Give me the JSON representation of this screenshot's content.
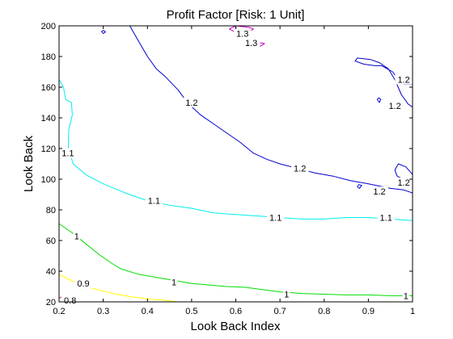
{
  "chart_data": {
    "type": "contour",
    "title": "Profit Factor [Risk: 1 Unit]",
    "xlabel": "Look Back Index",
    "ylabel": "Look Back",
    "xlim": [
      0.2,
      1.0
    ],
    "ylim": [
      20,
      200
    ],
    "grid": false,
    "xticks": [
      {
        "value": 0.2,
        "label": "0.2"
      },
      {
        "value": 0.3,
        "label": "0.3"
      },
      {
        "value": 0.4,
        "label": "0.4"
      },
      {
        "value": 0.5,
        "label": "0.5"
      },
      {
        "value": 0.6,
        "label": "0.6"
      },
      {
        "value": 0.7,
        "label": "0.7"
      },
      {
        "value": 0.8,
        "label": "0.8"
      },
      {
        "value": 0.9,
        "label": "0.9"
      },
      {
        "value": 1.0,
        "label": "1"
      }
    ],
    "yticks": [
      {
        "value": 20,
        "label": "20"
      },
      {
        "value": 40,
        "label": "40"
      },
      {
        "value": 60,
        "label": "60"
      },
      {
        "value": 80,
        "label": "80"
      },
      {
        "value": 100,
        "label": "100"
      },
      {
        "value": 120,
        "label": "120"
      },
      {
        "value": 140,
        "label": "140"
      },
      {
        "value": 160,
        "label": "160"
      },
      {
        "value": 180,
        "label": "180"
      },
      {
        "value": 200,
        "label": "200"
      }
    ],
    "levels": [
      {
        "level": "0.8",
        "color": "#ff0000",
        "lines": [
          [
            [
              0.2,
              22.5
            ],
            [
              0.207,
              23.3
            ],
            [
              0.218,
              23.0
            ],
            [
              0.222,
              21.5
            ],
            [
              0.235,
              21.0
            ],
            [
              0.245,
              20.0
            ]
          ]
        ]
      },
      {
        "level": "0.9",
        "color": "#ffff00",
        "lines": [
          [
            [
              0.2,
              38.0
            ],
            [
              0.22,
              35.0
            ],
            [
              0.24,
              32.0
            ],
            [
              0.26,
              30.0
            ],
            [
              0.28,
              28.5
            ],
            [
              0.3,
              27.0
            ],
            [
              0.33,
              25.0
            ],
            [
              0.36,
              23.5
            ],
            [
              0.4,
              22.0
            ],
            [
              0.44,
              21.0
            ],
            [
              0.47,
              20.0
            ]
          ]
        ]
      },
      {
        "level": "1",
        "color": "#00dd00",
        "lines": [
          [
            [
              0.2,
              71.0
            ],
            [
              0.23,
              65.0
            ],
            [
              0.26,
              58.0
            ],
            [
              0.29,
              51.0
            ],
            [
              0.32,
              45.0
            ],
            [
              0.34,
              41.5
            ],
            [
              0.38,
              38.0
            ],
            [
              0.42,
              36.0
            ],
            [
              0.46,
              34.0
            ],
            [
              0.5,
              32.0
            ],
            [
              0.54,
              31.0
            ],
            [
              0.58,
              30.0
            ],
            [
              0.62,
              29.5
            ],
            [
              0.66,
              28.0
            ],
            [
              0.7,
              26.5
            ],
            [
              0.75,
              25.5
            ],
            [
              0.8,
              25.0
            ],
            [
              0.85,
              24.5
            ],
            [
              0.9,
              24.5
            ],
            [
              0.95,
              24.0
            ],
            [
              1.0,
              24.0
            ]
          ]
        ]
      },
      {
        "level": "1.1",
        "color": "#00eeee",
        "lines": [
          [
            [
              0.2,
              165.0
            ],
            [
              0.21,
              160.0
            ],
            [
              0.215,
              152.0
            ],
            [
              0.228,
              150.0
            ],
            [
              0.23,
              142.0
            ],
            [
              0.222,
              132.0
            ],
            [
              0.221,
              120.0
            ],
            [
              0.232,
              110.0
            ],
            [
              0.26,
              103.0
            ],
            [
              0.3,
              97.0
            ],
            [
              0.35,
              91.0
            ],
            [
              0.4,
              86.0
            ],
            [
              0.45,
              83.0
            ],
            [
              0.5,
              81.0
            ],
            [
              0.55,
              78.0
            ],
            [
              0.6,
              77.0
            ],
            [
              0.65,
              76.0
            ],
            [
              0.7,
              75.0
            ],
            [
              0.75,
              74.0
            ],
            [
              0.8,
              74.0
            ],
            [
              0.85,
              75.0
            ],
            [
              0.9,
              75.0
            ],
            [
              0.95,
              74.0
            ],
            [
              1.0,
              73.0
            ]
          ]
        ]
      },
      {
        "level": "1.2",
        "color": "#0000cc",
        "lines": [
          [
            [
              0.36,
              200.0
            ],
            [
              0.38,
              190.0
            ],
            [
              0.4,
              180.0
            ],
            [
              0.42,
              172.0
            ],
            [
              0.44,
              167.0
            ],
            [
              0.47,
              158.0
            ],
            [
              0.49,
              150.0
            ],
            [
              0.52,
              142.0
            ],
            [
              0.55,
              136.0
            ],
            [
              0.58,
              130.0
            ],
            [
              0.61,
              124.0
            ],
            [
              0.64,
              117.0
            ],
            [
              0.67,
              113.0
            ],
            [
              0.7,
              110.0
            ],
            [
              0.74,
              107.0
            ],
            [
              0.78,
              104.0
            ],
            [
              0.82,
              102.0
            ],
            [
              0.86,
              99.0
            ],
            [
              0.9,
              97.0
            ],
            [
              0.95,
              94.0
            ],
            [
              0.98,
              93.0
            ],
            [
              1.0,
              91.0
            ]
          ],
          [
            [
              1.0,
              162.0
            ],
            [
              0.98,
              162.0
            ],
            [
              0.965,
              166.0
            ],
            [
              0.955,
              170.0
            ],
            [
              0.93,
              174.0
            ],
            [
              0.915,
              174.0
            ],
            [
              0.89,
              175.0
            ],
            [
              0.87,
              177.0
            ],
            [
              0.875,
              179.0
            ],
            [
              0.905,
              178.0
            ],
            [
              0.925,
              176.0
            ],
            [
              0.945,
              172.0
            ],
            [
              0.96,
              165.0
            ],
            [
              0.975,
              155.0
            ],
            [
              0.99,
              149.0
            ],
            [
              1.0,
              147.0
            ]
          ],
          [
            [
              1.0,
              103.0
            ],
            [
              0.985,
              108.0
            ],
            [
              0.968,
              110.0
            ],
            [
              0.96,
              106.0
            ],
            [
              0.965,
              102.0
            ],
            [
              0.98,
              100.0
            ],
            [
              1.0,
              98.0
            ]
          ],
          [
            [
              0.92,
              152.0
            ],
            [
              0.925,
              150.0
            ],
            [
              0.928,
              152.0
            ],
            [
              0.924,
              153.0
            ],
            [
              0.92,
              152.0
            ]
          ],
          [
            [
              0.875,
              95.0
            ],
            [
              0.88,
              94.0
            ],
            [
              0.885,
              96.0
            ],
            [
              0.878,
              96.5
            ],
            [
              0.875,
              95.0
            ]
          ],
          [
            [
              0.296,
              196.5
            ],
            [
              0.3,
              195.0
            ],
            [
              0.305,
              196.0
            ],
            [
              0.301,
              197.0
            ],
            [
              0.296,
              196.5
            ]
          ]
        ]
      },
      {
        "level": "1.3",
        "color": "#cc00cc",
        "lines": [
          [
            [
              0.585,
              198.0
            ],
            [
              0.6,
              200.0
            ],
            [
              0.63,
              199.0
            ],
            [
              0.64,
              198.0
            ],
            [
              0.63,
              196.0
            ],
            [
              0.605,
              195.0
            ],
            [
              0.585,
              198.0
            ]
          ],
          [
            [
              0.625,
              190.0
            ],
            [
              0.64,
              189.5
            ],
            [
              0.665,
              188.5
            ],
            [
              0.655,
              186.5
            ],
            [
              0.635,
              187.0
            ],
            [
              0.625,
              190.0
            ]
          ]
        ]
      }
    ],
    "annotations": [
      {
        "text": "0.8",
        "x": 0.225,
        "y": 21.0
      },
      {
        "text": "0.9",
        "x": 0.255,
        "y": 32.0
      },
      {
        "text": "1",
        "x": 0.24,
        "y": 63.0
      },
      {
        "text": "1",
        "x": 0.46,
        "y": 33.0
      },
      {
        "text": "1",
        "x": 0.715,
        "y": 25.0
      },
      {
        "text": "1",
        "x": 0.985,
        "y": 24.0
      },
      {
        "text": "1.1",
        "x": 0.22,
        "y": 117.0
      },
      {
        "text": "1.1",
        "x": 0.415,
        "y": 86.0
      },
      {
        "text": "1.1",
        "x": 0.69,
        "y": 75.0
      },
      {
        "text": "1.1",
        "x": 0.94,
        "y": 75.0
      },
      {
        "text": "1.2",
        "x": 0.5,
        "y": 150.0
      },
      {
        "text": "1.2",
        "x": 0.745,
        "y": 107.0
      },
      {
        "text": "1.2",
        "x": 0.96,
        "y": 148.0
      },
      {
        "text": "1.2",
        "x": 0.98,
        "y": 165.0
      },
      {
        "text": "1.2",
        "x": 0.925,
        "y": 92.0
      },
      {
        "text": "1.2",
        "x": 0.98,
        "y": 98.0
      },
      {
        "text": "1.3",
        "x": 0.615,
        "y": 195.0
      },
      {
        "text": "1.3",
        "x": 0.635,
        "y": 189.0
      }
    ]
  }
}
